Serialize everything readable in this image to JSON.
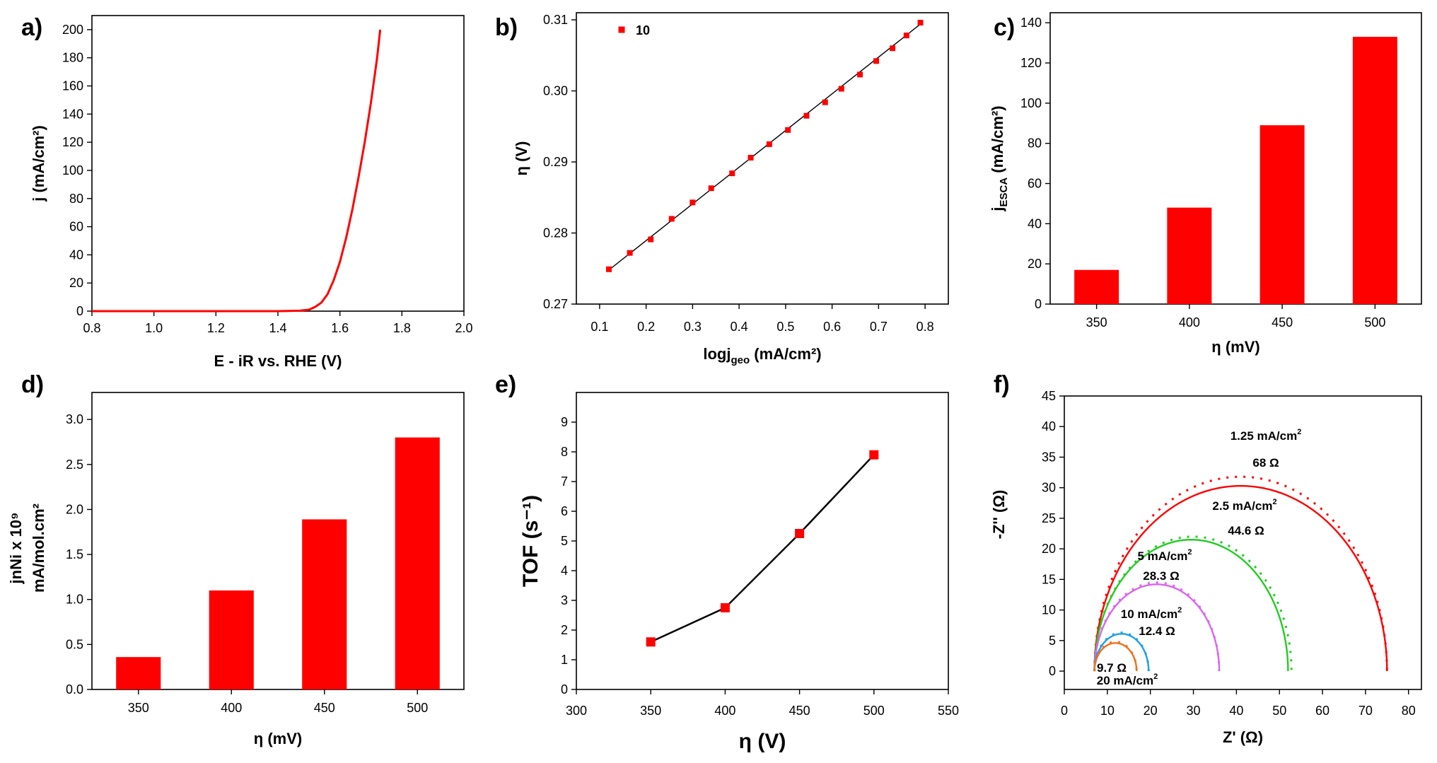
{
  "figure": {
    "panel_labels": [
      "a)",
      "b)",
      "c)",
      "d)",
      "e)",
      "f)"
    ]
  },
  "chart_data": [
    {
      "id": "a",
      "type": "line",
      "xlabel": "E - iR vs. RHE (V)",
      "ylabel": "j (mA/cm²)",
      "xlim": [
        0.8,
        2.0
      ],
      "ylim": [
        0,
        210
      ],
      "xticks": [
        0.8,
        1.0,
        1.2,
        1.4,
        1.6,
        1.8,
        2.0
      ],
      "yticks": [
        0,
        20,
        40,
        60,
        80,
        100,
        120,
        140,
        160,
        180,
        200
      ],
      "color": "#ff0000",
      "series": [
        {
          "x": [
            0.8,
            1.0,
            1.2,
            1.4,
            1.47,
            1.5,
            1.52,
            1.54,
            1.56,
            1.58,
            1.6,
            1.62,
            1.64,
            1.66,
            1.68,
            1.7,
            1.72,
            1.73
          ],
          "y": [
            0,
            0,
            0,
            0,
            0.3,
            1,
            3,
            6,
            12,
            22,
            35,
            52,
            72,
            95,
            120,
            148,
            180,
            200
          ]
        }
      ]
    },
    {
      "id": "b",
      "type": "scatter",
      "xlabel": "logj",
      "xlabel_sub": "geo",
      "xlabel_rest": " (mA/cm²)",
      "ylabel": "η (V)",
      "xlim": [
        0.05,
        0.85
      ],
      "ylim": [
        0.27,
        0.311
      ],
      "xticks": [
        0.1,
        0.2,
        0.3,
        0.4,
        0.5,
        0.6,
        0.7,
        0.8
      ],
      "yticks": [
        0.27,
        0.28,
        0.29,
        0.3,
        0.31
      ],
      "legend": "10",
      "color": "#ff0000",
      "fit": {
        "x": [
          0.12,
          0.79
        ],
        "y": [
          0.2748,
          0.3094
        ]
      },
      "series": [
        {
          "name": "10",
          "x": [
            0.12,
            0.165,
            0.21,
            0.255,
            0.3,
            0.34,
            0.385,
            0.425,
            0.465,
            0.505,
            0.545,
            0.585,
            0.62,
            0.66,
            0.695,
            0.73,
            0.76,
            0.79
          ],
          "y": [
            0.2749,
            0.2772,
            0.2791,
            0.282,
            0.2843,
            0.2863,
            0.2884,
            0.2906,
            0.2925,
            0.2945,
            0.2965,
            0.2984,
            0.3003,
            0.3023,
            0.3042,
            0.306,
            0.3078,
            0.3096
          ]
        }
      ]
    },
    {
      "id": "c",
      "type": "bar",
      "xlabel": "η (mV)",
      "ylabel": "j",
      "ylabel_sub": "ESCA",
      "ylabel_rest": " (mA/cm²)",
      "categories": [
        "350",
        "400",
        "450",
        "500"
      ],
      "values": [
        17,
        48,
        89,
        133
      ],
      "ylim": [
        0,
        145
      ],
      "yticks": [
        0,
        20,
        40,
        60,
        80,
        100,
        120,
        140
      ],
      "color": "#ff0000"
    },
    {
      "id": "d",
      "type": "bar",
      "xlabel": "η (mV)",
      "ylabel_line1": "jnNi x 10⁹",
      "ylabel_line2": "mA/mol.cm²",
      "categories": [
        "350",
        "400",
        "450",
        "500"
      ],
      "values": [
        0.36,
        1.1,
        1.89,
        2.8
      ],
      "ylim": [
        0,
        3.3
      ],
      "yticks": [
        "0.0",
        "0.5",
        "1.0",
        "1.5",
        "2.0",
        "2.5",
        "3.0"
      ],
      "color": "#ff0000"
    },
    {
      "id": "e",
      "type": "line",
      "xlabel": "η (V)",
      "ylabel": "TOF (s⁻¹)",
      "xlim": [
        300,
        550
      ],
      "ylim": [
        0,
        10
      ],
      "xticks": [
        300,
        350,
        400,
        450,
        500,
        550
      ],
      "yticks": [
        0,
        1,
        2,
        3,
        4,
        5,
        6,
        7,
        8,
        9
      ],
      "color": "#ff0000",
      "series": [
        {
          "x": [
            350,
            400,
            450,
            500
          ],
          "y": [
            1.6,
            2.75,
            5.25,
            7.9
          ]
        }
      ]
    },
    {
      "id": "f",
      "type": "line",
      "xlabel": "Z' (Ω)",
      "ylabel": "-Z'' (Ω)",
      "xlim": [
        0,
        83
      ],
      "ylim": [
        -3,
        45
      ],
      "xticks": [
        0,
        10,
        20,
        30,
        40,
        50,
        60,
        70,
        80
      ],
      "yticks": [
        0,
        5,
        10,
        15,
        20,
        25,
        30,
        35,
        40,
        45
      ],
      "series": [
        {
          "current": "1.25 mA/cm²",
          "resistance": "68 Ω",
          "color": "#ff0000",
          "x_start": 7,
          "x_end": 75,
          "height": 30.3,
          "peak_x": 42,
          "fit_x_end": 75,
          "fit_height": 31.8
        },
        {
          "current": "2.5 mA/cm²",
          "resistance": "44.6 Ω",
          "color": "#22cc22",
          "x_start": 7,
          "x_end": 52,
          "height": 21.5,
          "peak_x": 31,
          "fit_x_end": 52.8,
          "fit_height": 22
        },
        {
          "current": "5 mA/cm²",
          "resistance": "28.3 Ω",
          "color": "#d966ee",
          "x_start": 7,
          "x_end": 36,
          "height": 14.2,
          "peak_x": 21.5,
          "fit_x_end": 36,
          "fit_height": 14.5
        },
        {
          "current": "10 mA/cm²",
          "resistance": "12.4 Ω",
          "color": "#1e9fe6",
          "x_start": 7,
          "x_end": 19.6,
          "height": 6.1,
          "peak_x": 13.3,
          "fit_x_end": 19.6,
          "fit_height": 6.3
        },
        {
          "current": "20 mA/cm²",
          "resistance": "9.7 Ω",
          "color": "#f07020",
          "x_start": 7,
          "x_end": 16.8,
          "height": 4.6,
          "peak_x": 11.9,
          "fit_x_end": 16.8,
          "fit_height": 4.8
        }
      ]
    }
  ]
}
